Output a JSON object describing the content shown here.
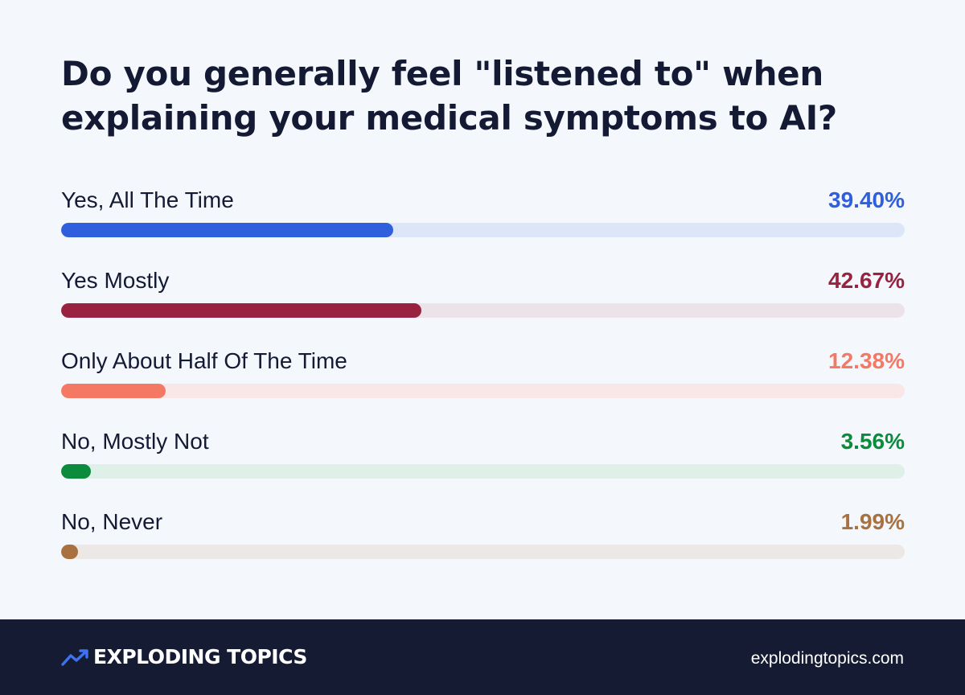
{
  "title": "Do you generally feel \"listened to\" when explaining your medical symptoms to AI?",
  "chart_data": {
    "type": "bar",
    "orientation": "horizontal",
    "title": "Do you generally feel \"listened to\" when explaining your medical symptoms to AI?",
    "xlabel": "",
    "ylabel": "",
    "xlim": [
      0,
      100
    ],
    "grid": false,
    "legend": "none",
    "categories": [
      "Yes, All The Time",
      "Yes Mostly",
      "Only About Half Of The Time",
      "No, Mostly Not",
      "No, Never"
    ],
    "values": [
      39.4,
      42.67,
      12.38,
      3.56,
      1.99
    ],
    "value_labels": [
      "39.40%",
      "42.67%",
      "12.38%",
      "3.56%",
      "1.99%"
    ],
    "colors": [
      "#2f5fdc",
      "#98223f",
      "#f57865",
      "#0b8c3c",
      "#a8713f"
    ],
    "track_colors": [
      "#dce6f8",
      "#ece3e8",
      "#f9e6e6",
      "#dff0e8",
      "#ebe8e5"
    ]
  },
  "footer": {
    "brand": "EXPLODING TOPICS",
    "brand_icon": "trend-arrow-icon",
    "url": "explodingtopics.com"
  }
}
